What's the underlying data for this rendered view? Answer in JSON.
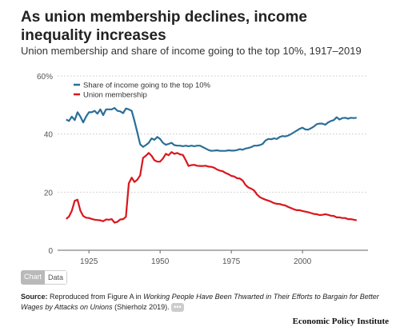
{
  "title": "As union membership declines, income inequality increases",
  "subtitle": "Union membership and share of income going to the top 10%, 1917–2019",
  "tabs": {
    "chart": "Chart",
    "data": "Data"
  },
  "source": {
    "label": "Source:",
    "text1": "Reproduced from Figure A in",
    "italic": "Working People Have Been Thwarted in Their Efforts to Bargain for Better Wages by Attacks on Unions",
    "text2": "(Shierholz 2019).",
    "more": "•••"
  },
  "brand": "Economic Policy Institute",
  "colors": {
    "income": "#2a6f97",
    "union": "#d9161c",
    "grid": "#c8c8c8",
    "axis": "#666666"
  },
  "chart_data": {
    "type": "line",
    "x": [
      1917,
      1918,
      1919,
      1920,
      1921,
      1922,
      1923,
      1924,
      1925,
      1926,
      1927,
      1928,
      1929,
      1930,
      1931,
      1932,
      1933,
      1934,
      1935,
      1936,
      1937,
      1938,
      1939,
      1940,
      1941,
      1942,
      1943,
      1944,
      1945,
      1946,
      1947,
      1948,
      1949,
      1950,
      1951,
      1952,
      1953,
      1954,
      1955,
      1956,
      1957,
      1958,
      1959,
      1960,
      1961,
      1962,
      1963,
      1964,
      1965,
      1966,
      1967,
      1968,
      1969,
      1970,
      1971,
      1972,
      1973,
      1974,
      1975,
      1976,
      1977,
      1978,
      1979,
      1980,
      1981,
      1982,
      1983,
      1984,
      1985,
      1986,
      1987,
      1988,
      1989,
      1990,
      1991,
      1992,
      1993,
      1994,
      1995,
      1996,
      1997,
      1998,
      1999,
      2000,
      2001,
      2002,
      2003,
      2004,
      2005,
      2006,
      2007,
      2008,
      2009,
      2010,
      2011,
      2012,
      2013,
      2014,
      2015,
      2016,
      2017,
      2018,
      2019
    ],
    "series": [
      {
        "name": "Share of income going to the top 10%",
        "color": "#2a6f97",
        "values": [
          45,
          44.5,
          46,
          44.8,
          47.5,
          46,
          44,
          46,
          47.5,
          47.5,
          48,
          47,
          48.5,
          46.5,
          48.5,
          48.5,
          48.5,
          49,
          48,
          47.8,
          47.2,
          48.8,
          48.5,
          48,
          44.5,
          40.5,
          36.5,
          35.6,
          36.2,
          37,
          38.5,
          38,
          39,
          38.3,
          37,
          36.3,
          36.6,
          37,
          36.2,
          36,
          36,
          35.8,
          36,
          35.8,
          36,
          35.8,
          36,
          36,
          35.5,
          35,
          34.5,
          34.2,
          34.3,
          34.4,
          34.2,
          34.2,
          34.2,
          34.4,
          34.3,
          34.3,
          34.5,
          34.8,
          34.6,
          35,
          35.2,
          35.5,
          36,
          36,
          36.2,
          36.6,
          37.8,
          38.3,
          38.2,
          38.5,
          38.3,
          39,
          39.3,
          39.2,
          39.5,
          40,
          40.6,
          41.2,
          41.8,
          42.2,
          41.6,
          41.5,
          42,
          42.6,
          43.4,
          43.6,
          43.6,
          43.2,
          44,
          44.5,
          44.8,
          45.8,
          45,
          45.5,
          45.6,
          45.3,
          45.6,
          45.5,
          45.6
        ]
      },
      {
        "name": "Union membership",
        "color": "#d9161c",
        "values": [
          10.8,
          11.6,
          13.6,
          17,
          17.4,
          13.6,
          11.8,
          11.2,
          11.1,
          10.8,
          10.5,
          10.4,
          10.3,
          10,
          10.6,
          10.5,
          10.7,
          9.5,
          9.8,
          10.6,
          10.7,
          11.5,
          23,
          25,
          23.5,
          24.3,
          25.8,
          31.8,
          32.5,
          33.5,
          32.5,
          31,
          30.5,
          30.5,
          31.6,
          33.2,
          32.7,
          33.8,
          33.2,
          33.5,
          33,
          32.8,
          31,
          29,
          29.3,
          29.4,
          29.1,
          29,
          29,
          29.1,
          28.8,
          28.7,
          28.4,
          27.8,
          27.4,
          27.2,
          26.6,
          26.2,
          25.6,
          25.4,
          24.8,
          24.7,
          24,
          22.5,
          21.6,
          21.2,
          20.6,
          19.2,
          18.3,
          17.8,
          17.4,
          17.1,
          16.7,
          16.2,
          16,
          15.9,
          15.6,
          15.4,
          14.9,
          14.5,
          14.1,
          13.8,
          13.8,
          13.5,
          13.3,
          13.1,
          12.8,
          12.5,
          12.4,
          12.1,
          12.2,
          12.4,
          12.2,
          11.9,
          11.8,
          11.3,
          11.3,
          11.1,
          11.1,
          10.7,
          10.7,
          10.5,
          10.3
        ]
      }
    ],
    "x_ticks": [
      1925,
      1950,
      1975,
      2000
    ],
    "y_ticks": [
      0,
      20,
      40,
      60
    ],
    "y_tick_labels": [
      "0",
      "20",
      "40",
      "60%"
    ],
    "xlim": [
      1914,
      2023
    ],
    "ylim": [
      0,
      60
    ],
    "grid": "horizontal dotted",
    "legend_position": "top-left"
  }
}
